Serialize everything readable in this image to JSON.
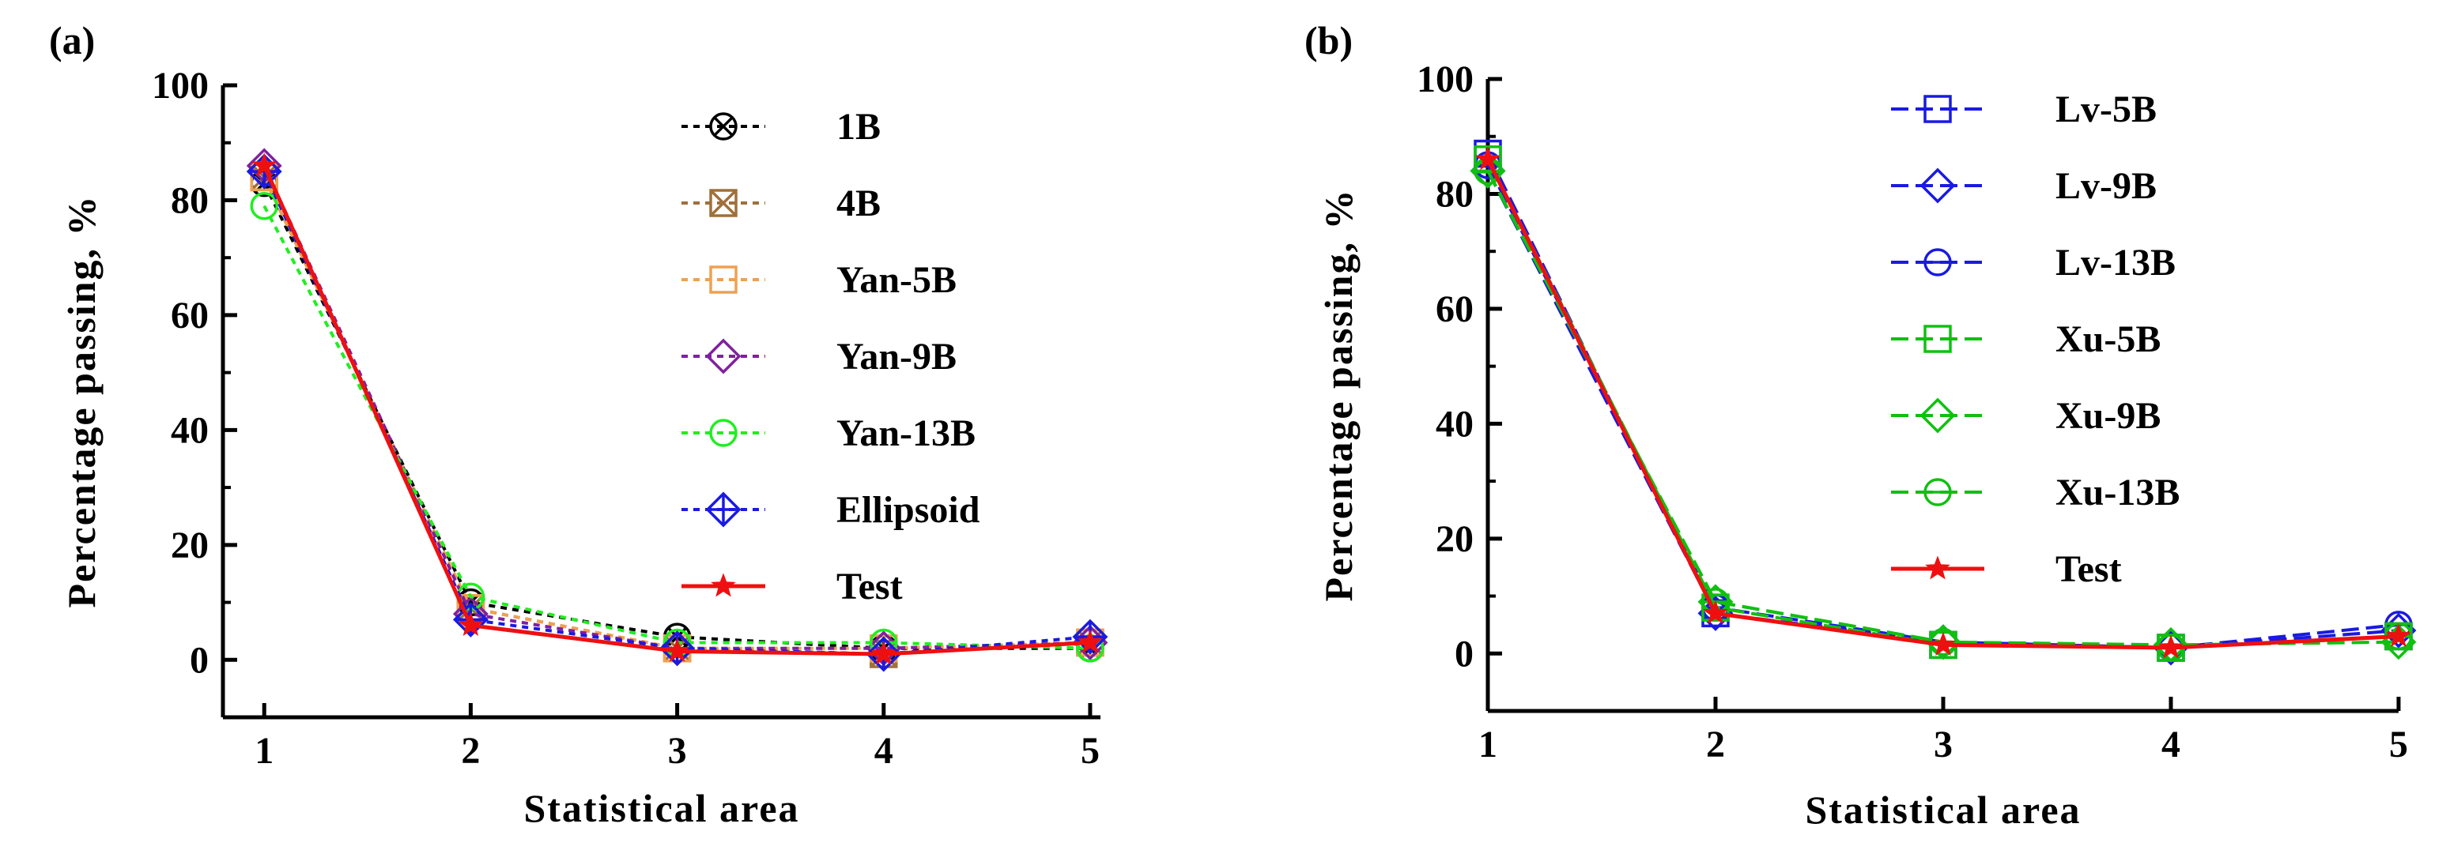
{
  "chart_data": [
    {
      "type": "line",
      "panel": "(a)",
      "xlabel": "Statistical area",
      "ylabel": "Percentage passing, %",
      "x": [
        1,
        2,
        3,
        4,
        5
      ],
      "xticks": [
        "1",
        "2",
        "3",
        "4",
        "5"
      ],
      "yticks": [
        "0",
        "20",
        "40",
        "60",
        "80",
        "100"
      ],
      "ylim": [
        -10,
        100
      ],
      "xlim": [
        0.8,
        5.05
      ],
      "series": [
        {
          "name": "1B",
          "color": "#000000",
          "dash": "dotted",
          "marker": "circle-x",
          "values": [
            83,
            10,
            4,
            2,
            2
          ]
        },
        {
          "name": "4B",
          "color": "#a0703a",
          "dash": "dotted",
          "marker": "square-x",
          "values": [
            84,
            9,
            2,
            1,
            3
          ]
        },
        {
          "name": "Yan-5B",
          "color": "#f0a050",
          "dash": "dotted",
          "marker": "square",
          "values": [
            84,
            9,
            2,
            2,
            3
          ]
        },
        {
          "name": "Yan-9B",
          "color": "#8020a0",
          "dash": "dotted",
          "marker": "diamond",
          "values": [
            86,
            8,
            2,
            2,
            3
          ]
        },
        {
          "name": "Yan-13B",
          "color": "#20ee20",
          "dash": "dotted",
          "marker": "circle",
          "values": [
            79,
            11,
            3,
            3,
            2
          ]
        },
        {
          "name": "Ellipsoid",
          "color": "#1a1ae0",
          "dash": "dotted",
          "marker": "diamond-plus",
          "values": [
            85,
            7,
            2,
            1,
            4
          ]
        },
        {
          "name": "Test",
          "color": "#ee1010",
          "dash": "solid",
          "marker": "star",
          "values": [
            86,
            6,
            1.5,
            1,
            3
          ]
        }
      ]
    },
    {
      "type": "line",
      "panel": "(b)",
      "xlabel": "Statistical area",
      "ylabel": "Percentage passing, %",
      "x": [
        1,
        2,
        3,
        4,
        5
      ],
      "xticks": [
        "1",
        "2",
        "3",
        "4",
        "5"
      ],
      "yticks": [
        "0",
        "20",
        "40",
        "60",
        "80",
        "100"
      ],
      "ylim": [
        -10,
        100
      ],
      "xlim": [
        1,
        5
      ],
      "series": [
        {
          "name": "Lv-5B",
          "color": "#1a1ae0",
          "dash": "dashed",
          "marker": "square",
          "values": [
            87,
            7,
            1.5,
            1,
            3
          ]
        },
        {
          "name": "Lv-9B",
          "color": "#1a1ae0",
          "dash": "dashed",
          "marker": "diamond",
          "values": [
            84,
            7,
            2,
            1,
            4
          ]
        },
        {
          "name": "Lv-13B",
          "color": "#1a1ae0",
          "dash": "dashed",
          "marker": "circle-minus",
          "values": [
            85,
            8,
            2,
            1,
            5
          ]
        },
        {
          "name": "Xu-5B",
          "color": "#10c010",
          "dash": "dashed",
          "marker": "square",
          "values": [
            86,
            8,
            1.5,
            1,
            3
          ]
        },
        {
          "name": "Xu-9B",
          "color": "#10c010",
          "dash": "dashed",
          "marker": "diamond",
          "values": [
            84,
            9,
            2,
            1.5,
            2
          ]
        },
        {
          "name": "Xu-13B",
          "color": "#10c010",
          "dash": "dashed",
          "marker": "circle-minus",
          "values": [
            84,
            9,
            2,
            1,
            3
          ]
        },
        {
          "name": "Test",
          "color": "#ee1010",
          "dash": "solid",
          "marker": "star",
          "values": [
            86,
            7,
            1.5,
            1,
            3
          ]
        }
      ]
    }
  ]
}
